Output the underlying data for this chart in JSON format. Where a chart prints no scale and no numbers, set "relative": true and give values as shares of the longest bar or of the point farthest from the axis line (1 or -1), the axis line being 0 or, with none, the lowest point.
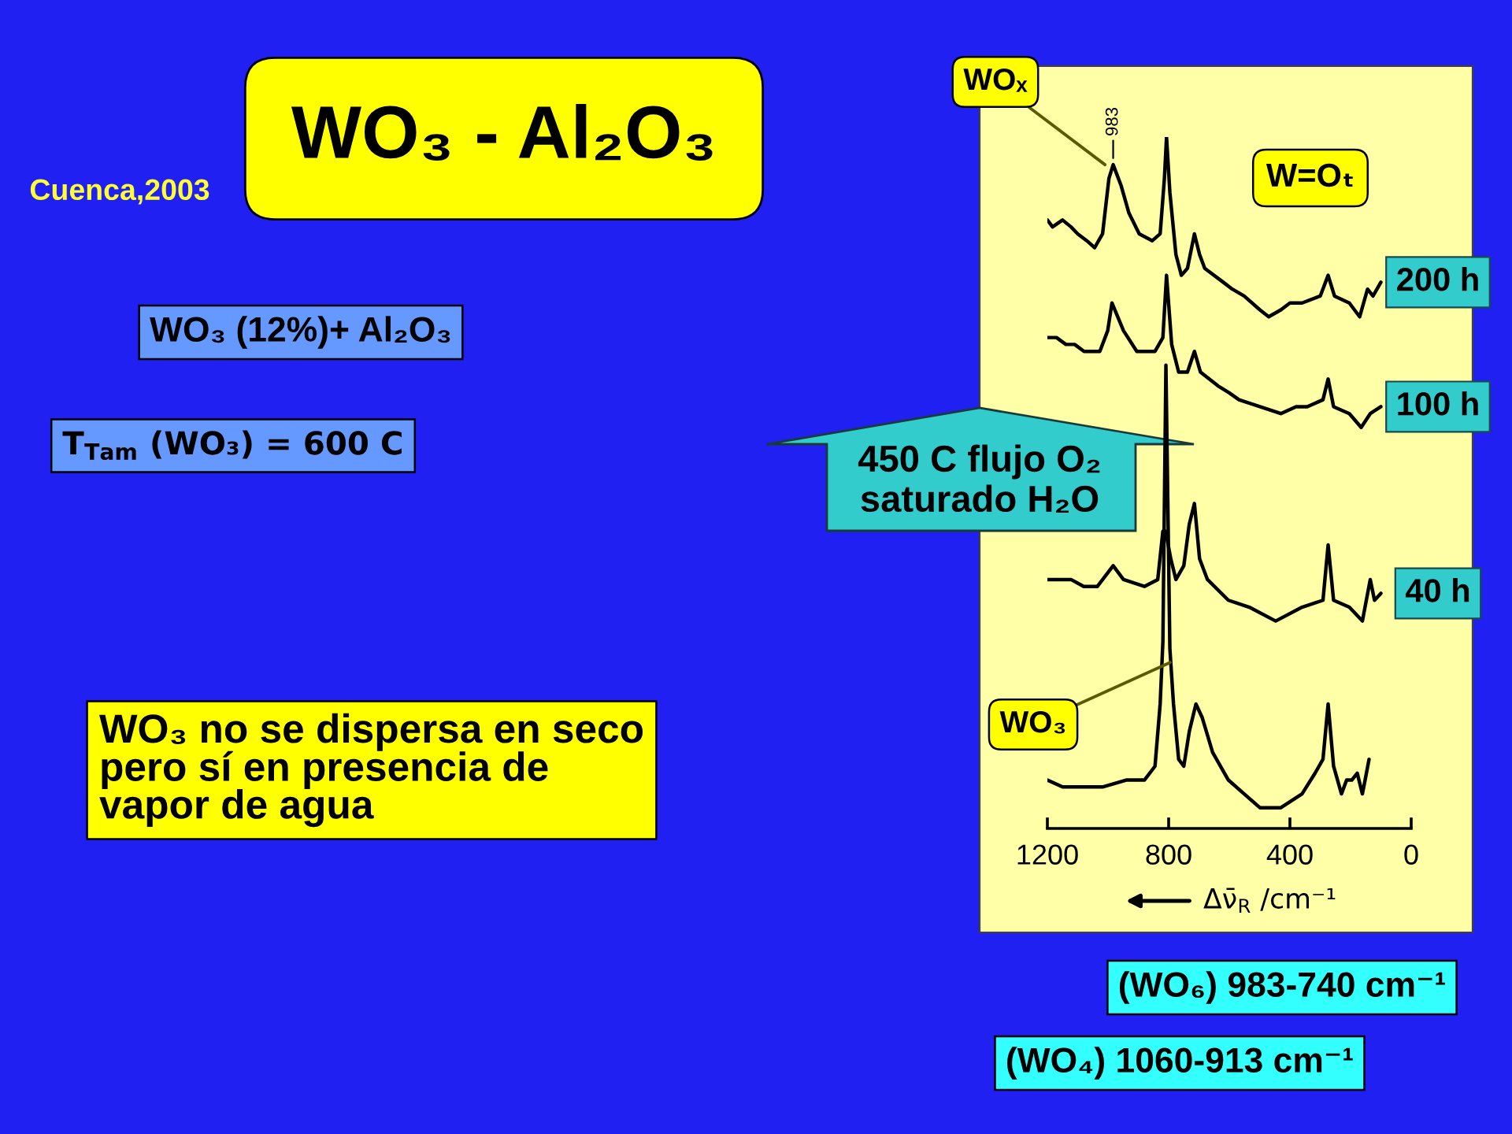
{
  "chart_data": {
    "type": "line",
    "title": "WO₃ - Al₂O₃",
    "xlabel": "Δν̄$_{R}$ /cm⁻¹",
    "relative": true,
    "xlim": [
      1200,
      0
    ],
    "xticks": [
      1200,
      800,
      400,
      0
    ],
    "series": [
      {
        "name": "200 h",
        "color": "#000000",
        "x": [
          1200,
          1183,
          1150,
          1122,
          1100,
          1070,
          1044,
          1018,
          997,
          983,
          957,
          931,
          897,
          854,
          828,
          814,
          807,
          796,
          776,
          758,
          738,
          715,
          698,
          681,
          620,
          590,
          551,
          499,
          470,
          430,
          400,
          360,
          300,
          274,
          253,
          204,
          170,
          144,
          126,
          100
        ],
        "values": [
          0.88,
          0.87,
          0.88,
          0.87,
          0.86,
          0.85,
          0.84,
          0.86,
          0.94,
          0.96,
          0.93,
          0.89,
          0.86,
          0.85,
          0.86,
          0.94,
          1.0,
          0.92,
          0.83,
          0.8,
          0.81,
          0.86,
          0.83,
          0.81,
          0.79,
          0.78,
          0.77,
          0.75,
          0.74,
          0.75,
          0.76,
          0.76,
          0.77,
          0.8,
          0.77,
          0.76,
          0.74,
          0.78,
          0.77,
          0.79
        ]
      },
      {
        "name": "100 h",
        "color": "#000000",
        "x": [
          1200,
          1170,
          1139,
          1110,
          1079,
          1027,
          1001,
          987,
          949,
          905,
          845,
          819,
          807,
          790,
          767,
          738,
          715,
          695,
          637,
          600,
          568,
          499,
          430,
          380,
          343,
          291,
          274,
          256,
          204,
          165,
          135,
          100
        ],
        "values": [
          0.71,
          0.71,
          0.7,
          0.7,
          0.69,
          0.69,
          0.72,
          0.76,
          0.72,
          0.69,
          0.69,
          0.71,
          0.8,
          0.7,
          0.66,
          0.66,
          0.69,
          0.66,
          0.64,
          0.63,
          0.62,
          0.61,
          0.6,
          0.61,
          0.61,
          0.62,
          0.65,
          0.61,
          0.6,
          0.58,
          0.6,
          0.61
        ]
      },
      {
        "name": "40 h",
        "color": "#000000",
        "x": [
          1200,
          1160,
          1122,
          1080,
          1035,
          983,
          949,
          880,
          836,
          819,
          810,
          793,
          776,
          750,
          732,
          715,
          698,
          672,
          603,
          534,
          447,
          360,
          291,
          274,
          256,
          204,
          161,
          135,
          121,
          100
        ],
        "values": [
          0.36,
          0.36,
          0.36,
          0.35,
          0.35,
          0.38,
          0.36,
          0.35,
          0.36,
          0.43,
          0.43,
          0.39,
          0.36,
          0.38,
          0.44,
          0.47,
          0.39,
          0.36,
          0.33,
          0.32,
          0.3,
          0.32,
          0.33,
          0.41,
          0.33,
          0.32,
          0.3,
          0.36,
          0.33,
          0.34
        ]
      },
      {
        "color": "#000000",
        "x": [
          1200,
          1150,
          1087,
          1018,
          940,
          880,
          845,
          828,
          819,
          809,
          796,
          784,
          767,
          750,
          732,
          710,
          689,
          655,
          603,
          551,
          499,
          430,
          360,
          317,
          291,
          274,
          256,
          230,
          213,
          196,
          178,
          161,
          152,
          139
        ],
        "values": [
          0.07,
          0.06,
          0.06,
          0.06,
          0.07,
          0.07,
          0.09,
          0.18,
          0.27,
          0.67,
          0.26,
          0.18,
          0.1,
          0.09,
          0.14,
          0.18,
          0.16,
          0.11,
          0.07,
          0.05,
          0.03,
          0.03,
          0.05,
          0.08,
          0.1,
          0.18,
          0.09,
          0.05,
          0.07,
          0.07,
          0.08,
          0.05,
          0.07,
          0.1
        ]
      }
    ],
    "annotations": [
      "Cuenca,2003",
      "WO₃ (12%)+ Al₂O₃",
      "T$_{Tam}$ (WO₃) = 600 C",
      "WO₃ no se dispersa en seco\npero sí en presencia de\nvapor de agua",
      {
        "text": "983",
        "x": 983,
        "y": 0.96
      },
      {
        "text": "WOₓ",
        "x": 1010,
        "y": 0.96
      },
      "W=Oₜ",
      "450 C flujo O₂\nsaturado H₂O",
      {
        "text": "WO₃",
        "x": 795,
        "y": 0.24
      },
      "(WO₆) 983-740 cm⁻¹",
      "(WO₄) 1060-913 cm⁻¹"
    ]
  }
}
